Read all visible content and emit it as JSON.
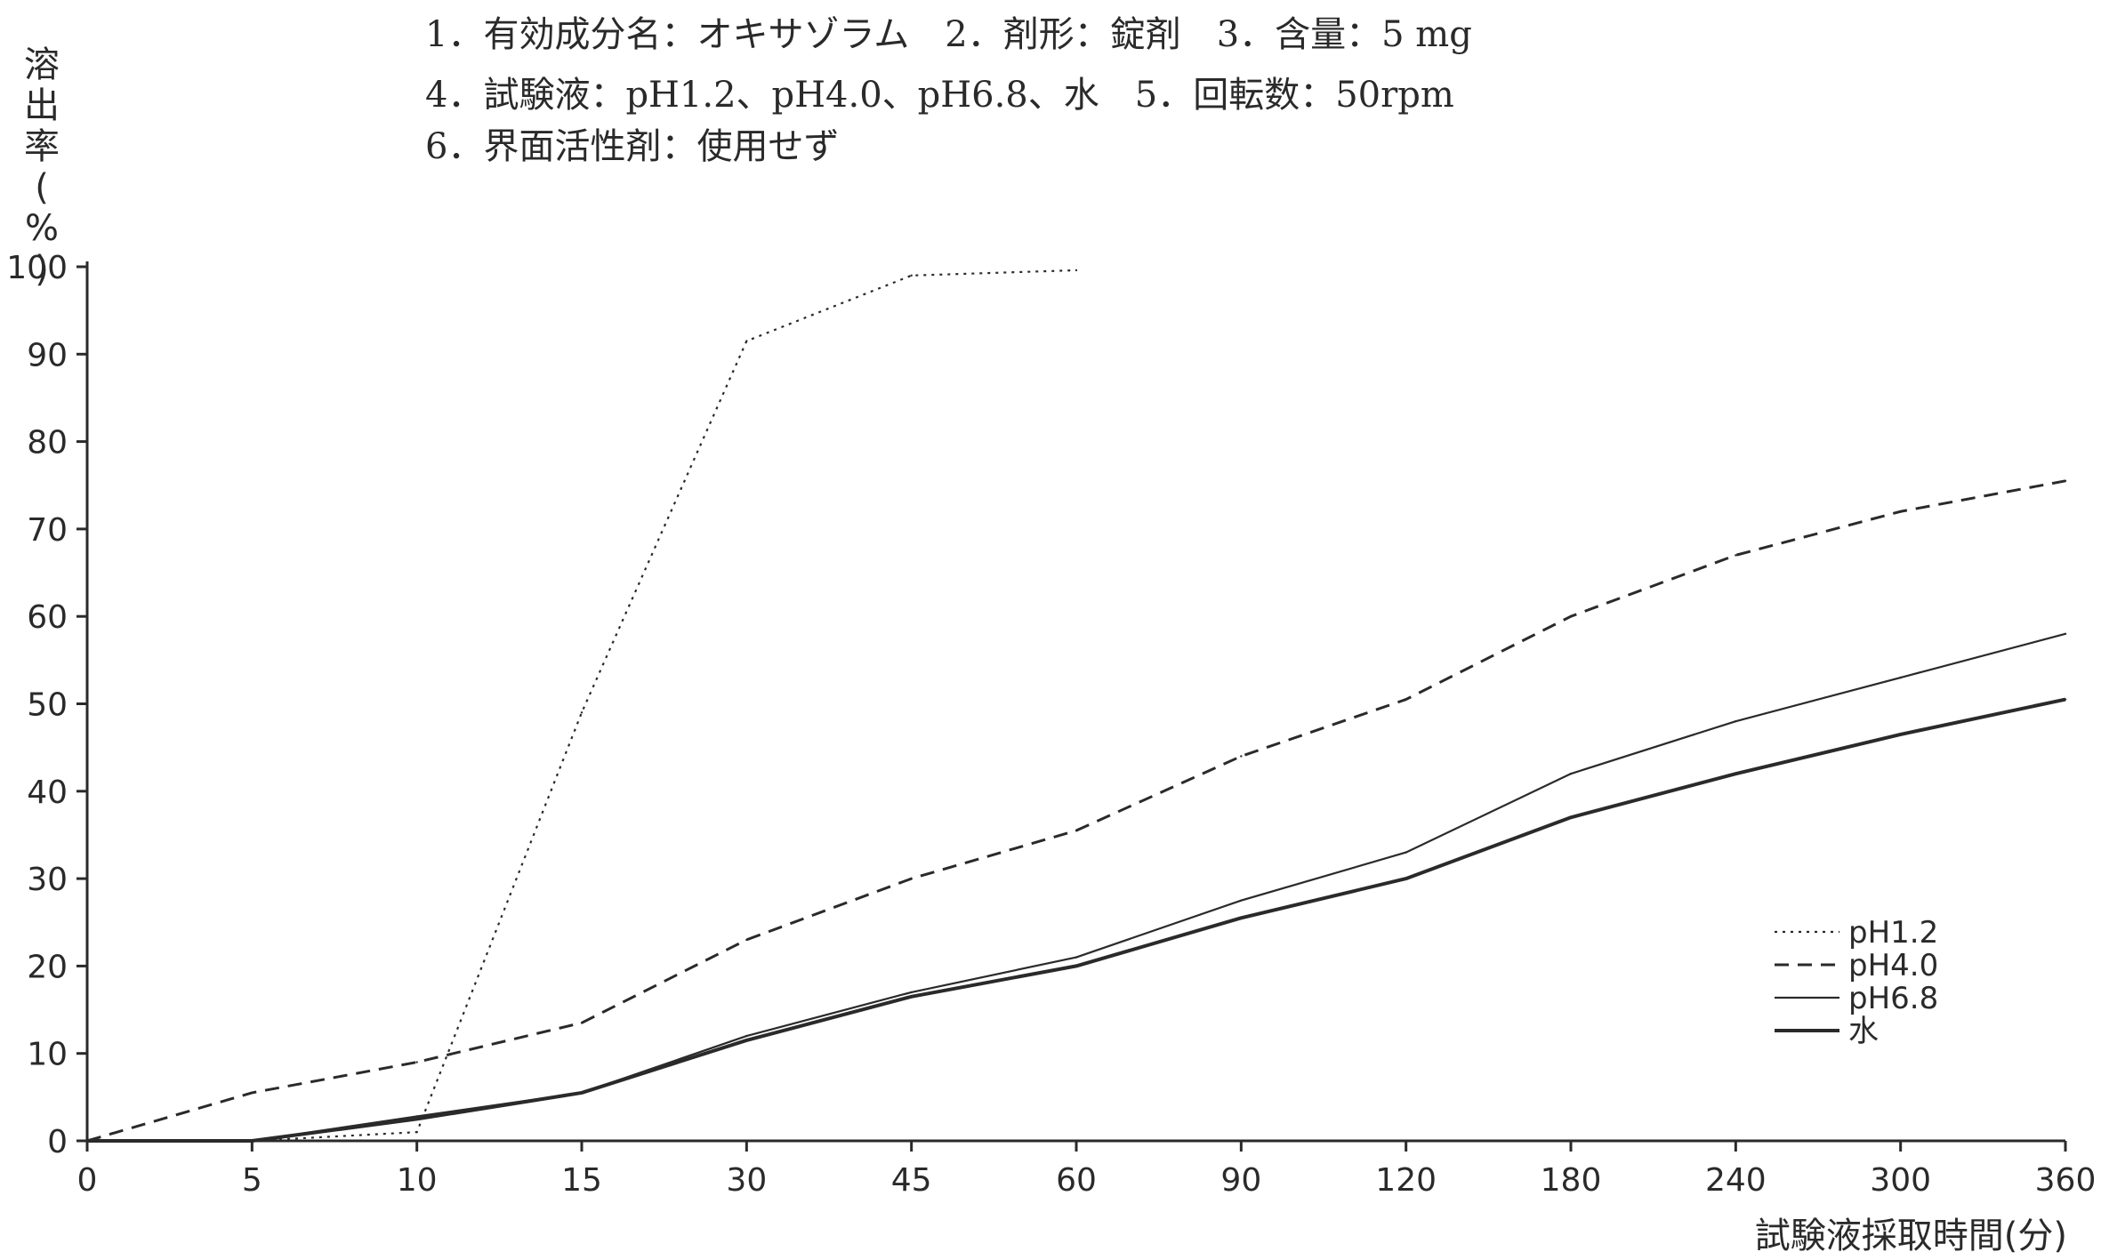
{
  "header": {
    "line1": "1．有効成分名：オキサゾラム　2．剤形：錠剤　3．含量：5 mg",
    "line2": "4．試験液：pH1.2、pH4.0、pH6.8、水　5．回転数：50rpm",
    "line3": "6．界面活性剤：使用せず"
  },
  "chart_data": {
    "type": "line",
    "title": "",
    "xlabel": "試験液採取時間(分)",
    "ylabel": "溶出率(%)",
    "ylabel_chars": [
      "溶",
      "出",
      "率",
      "(",
      "%",
      ")"
    ],
    "ylim": [
      0,
      100
    ],
    "yticks": [
      0,
      10,
      20,
      30,
      40,
      50,
      60,
      70,
      80,
      90,
      100
    ],
    "categories": [
      "0",
      "5",
      "10",
      "15",
      "30",
      "45",
      "60",
      "90",
      "120",
      "180",
      "240",
      "300",
      "360"
    ],
    "x_scale": "categorical, equally spaced",
    "grid": false,
    "legend_position": "right",
    "series": [
      {
        "name": "pH1.2",
        "style": "dotted",
        "values": [
          0,
          0,
          1,
          49,
          91.5,
          99,
          99.6,
          null,
          null,
          null,
          null,
          null,
          null
        ]
      },
      {
        "name": "pH4.0",
        "style": "dashed",
        "values": [
          0,
          5.5,
          9,
          13.5,
          23,
          30,
          35.5,
          44,
          50.5,
          60,
          67,
          72,
          75.5
        ]
      },
      {
        "name": "pH6.8",
        "style": "solid-thin",
        "values": [
          0,
          0,
          2.8,
          5.5,
          12,
          17,
          21,
          27.5,
          33,
          42,
          48,
          53,
          58
        ]
      },
      {
        "name": "水",
        "style": "solid-thick",
        "values": [
          0,
          0,
          2.5,
          5.5,
          11.5,
          16.5,
          20,
          25.5,
          30,
          37,
          42,
          46.5,
          50.5
        ]
      }
    ],
    "line_color": "#2a2a2a"
  }
}
